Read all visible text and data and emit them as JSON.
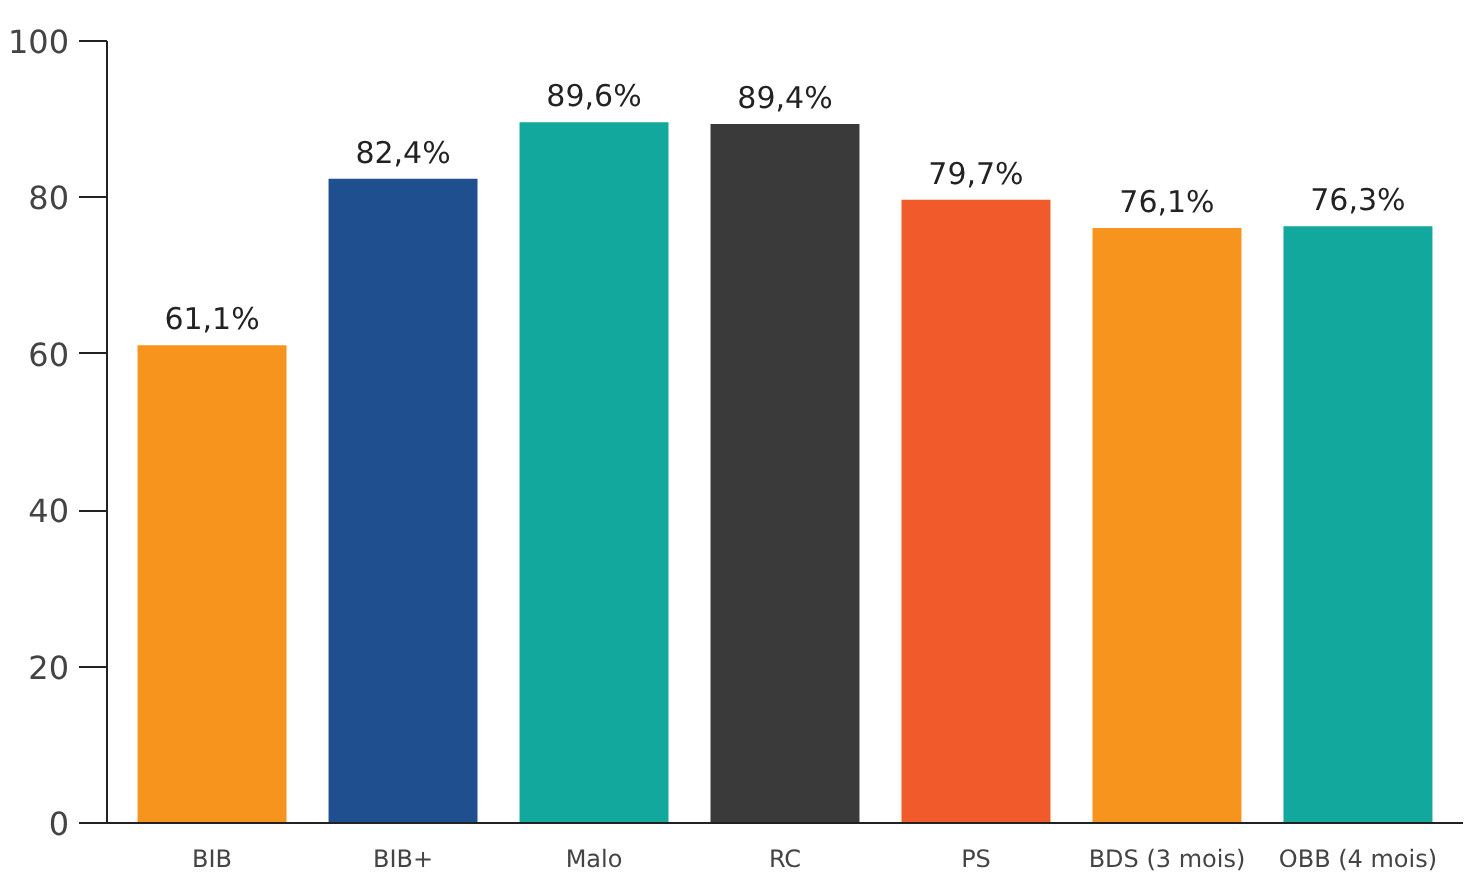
{
  "chart_data": {
    "type": "bar",
    "categories": [
      "BIB",
      "BIB+",
      "Malo",
      "RC",
      "PS",
      "BDS (3 mois)",
      "OBB (4 mois)"
    ],
    "values": [
      61.1,
      82.4,
      89.6,
      89.4,
      79.7,
      76.1,
      76.3
    ],
    "value_labels": [
      "61,1%",
      "82,4%",
      "89,6%",
      "89,4%",
      "79,7%",
      "76,1%",
      "76,3%"
    ],
    "colors": [
      "#f7941d",
      "#1f4f8f",
      "#13a89e",
      "#3a3a3a",
      "#f15a2b",
      "#f7941d",
      "#13a89e"
    ],
    "ylim": [
      0,
      100
    ],
    "yticks": [
      0,
      20,
      40,
      60,
      80,
      100
    ],
    "grid": false
  }
}
